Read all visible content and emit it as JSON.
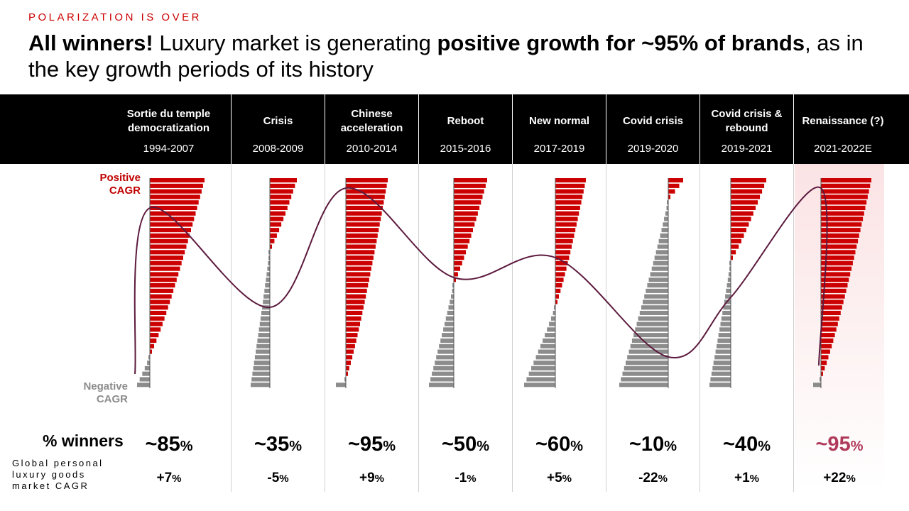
{
  "slide": {
    "kicker": "POLARIZATION IS OVER",
    "title_bold_1": "All winners!",
    "title_regular_1": " Luxury market is generating ",
    "title_bold_2": "positive growth for ~95% of brands",
    "title_regular_2": ", as in the key growth periods of its history"
  },
  "labels": {
    "positive_cagr": "Positive\nCAGR",
    "negative_cagr": "Negative\nCAGR",
    "winners_row": "% winners",
    "cagr_row": "Global personal luxury goods market CAGR"
  },
  "colors": {
    "positive": "#cc0000",
    "negative": "#8c8c8c",
    "curve": "#5c1a3e",
    "highlight": "#b03a5b"
  },
  "chart_data": {
    "type": "bar",
    "orientation": "horizontal",
    "categories": [
      "Sortie du temple democratization",
      "Crisis",
      "Chinese acceleration",
      "Reboot",
      "New normal",
      "Covid crisis",
      "Covid crisis & rebound",
      "Renaissance (?)"
    ],
    "periods": [
      "1994-2007",
      "2008-2009",
      "2010-2014",
      "2015-2016",
      "2017-2019",
      "2019-2020",
      "2019-2021",
      "2021-2022E"
    ],
    "winners_label": [
      "~85",
      "~35",
      "~95",
      "~50",
      "~60",
      "~10",
      "~40",
      "~95"
    ],
    "winners_pct": [
      85,
      35,
      95,
      50,
      60,
      10,
      40,
      95
    ],
    "market_cagr_label": [
      "+7",
      "-5",
      "+9",
      "-1",
      "+5",
      "-22",
      "+1",
      "+22"
    ],
    "market_cagr_pct": [
      7,
      -5,
      9,
      -1,
      5,
      -22,
      1,
      22
    ],
    "unit": "%",
    "highlighted_category_index": 7,
    "curve_note": "line connects global market CAGR across periods"
  }
}
